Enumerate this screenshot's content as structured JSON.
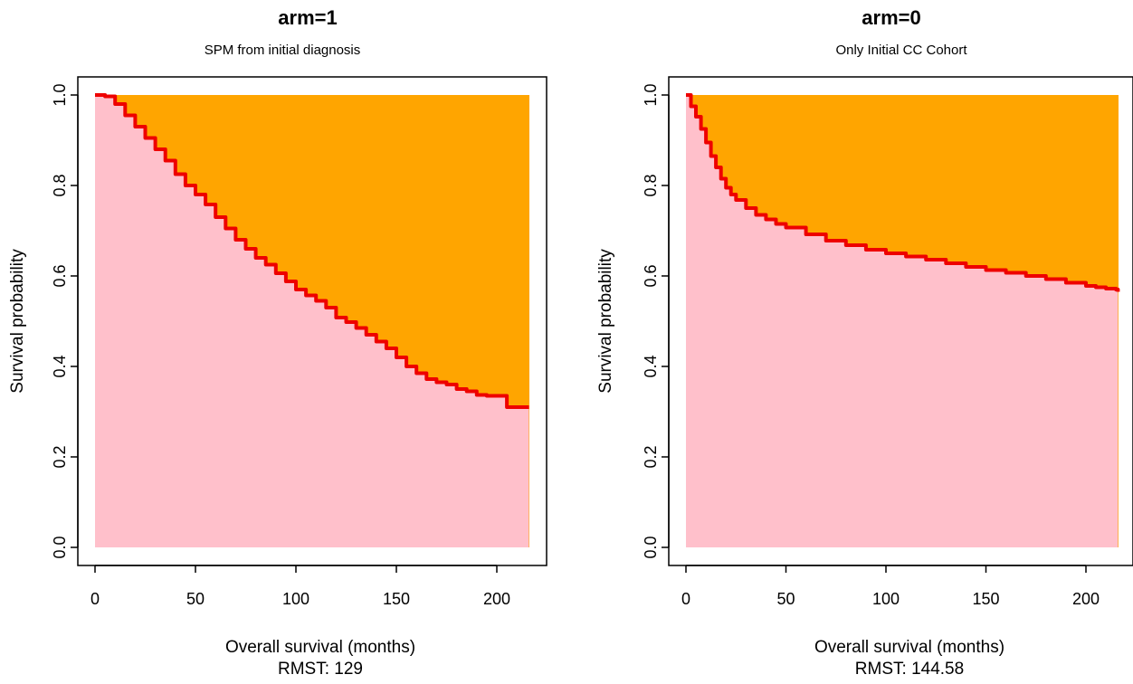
{
  "chart_data": [
    {
      "type": "area",
      "title": "arm=1",
      "subtitle": "SPM from initial diagnosis",
      "xlabel": "Overall survival (months)",
      "ylabel": "Survival probability",
      "rmst_text": "RMST: 129",
      "xlim": [
        0,
        216
      ],
      "ylim": [
        0,
        1
      ],
      "x_ticks": [
        "0",
        "50",
        "100",
        "150",
        "200"
      ],
      "x_tick_values": [
        0,
        50,
        100,
        150,
        200
      ],
      "y_ticks": [
        "0.0",
        "0.2",
        "0.4",
        "0.6",
        "0.8",
        "1.0"
      ],
      "y_tick_values": [
        0,
        0.2,
        0.4,
        0.6,
        0.8,
        1.0
      ],
      "grid": false,
      "colors": {
        "curve": "#ee0000",
        "below_curve": "#ffc0cb",
        "above_curve": "#ffa500"
      },
      "series": [
        {
          "x": [
            0,
            5,
            10,
            15,
            20,
            25,
            30,
            35,
            40,
            45,
            50,
            55,
            60,
            65,
            70,
            75,
            80,
            85,
            90,
            95,
            100,
            105,
            110,
            115,
            120,
            125,
            130,
            135,
            140,
            145,
            150,
            155,
            160,
            165,
            170,
            175,
            180,
            185,
            190,
            195,
            200,
            205,
            210,
            216
          ],
          "y": [
            1.0,
            0.997,
            0.98,
            0.955,
            0.93,
            0.905,
            0.88,
            0.855,
            0.825,
            0.8,
            0.78,
            0.758,
            0.73,
            0.705,
            0.68,
            0.66,
            0.64,
            0.625,
            0.606,
            0.588,
            0.57,
            0.557,
            0.545,
            0.53,
            0.508,
            0.498,
            0.485,
            0.47,
            0.455,
            0.44,
            0.42,
            0.4,
            0.385,
            0.372,
            0.365,
            0.36,
            0.35,
            0.345,
            0.337,
            0.335,
            0.335,
            0.31,
            0.31,
            0.31
          ]
        }
      ]
    },
    {
      "type": "area",
      "title": "arm=0",
      "subtitle": "Only Initial CC Cohort",
      "xlabel": "Overall survival (months)",
      "ylabel": "Survival probability",
      "rmst_text": "RMST: 144.58",
      "xlim": [
        0,
        216
      ],
      "ylim": [
        0,
        1
      ],
      "x_ticks": [
        "0",
        "50",
        "100",
        "150",
        "200"
      ],
      "x_tick_values": [
        0,
        50,
        100,
        150,
        200
      ],
      "y_ticks": [
        "0.0",
        "0.2",
        "0.4",
        "0.6",
        "0.8",
        "1.0"
      ],
      "y_tick_values": [
        0,
        0.2,
        0.4,
        0.6,
        0.8,
        1.0
      ],
      "grid": false,
      "colors": {
        "curve": "#ee0000",
        "below_curve": "#ffc0cb",
        "above_curve": "#ffa500"
      },
      "series": [
        {
          "x": [
            0,
            2.5,
            5,
            7.5,
            10,
            12.5,
            15,
            17.5,
            20,
            22.5,
            25,
            30,
            35,
            40,
            45,
            50,
            60,
            70,
            80,
            90,
            100,
            110,
            120,
            130,
            140,
            150,
            160,
            170,
            180,
            190,
            200,
            205,
            210,
            215,
            216
          ],
          "y": [
            1.0,
            0.975,
            0.952,
            0.925,
            0.895,
            0.865,
            0.84,
            0.815,
            0.795,
            0.78,
            0.768,
            0.75,
            0.735,
            0.725,
            0.715,
            0.707,
            0.692,
            0.678,
            0.668,
            0.658,
            0.65,
            0.643,
            0.636,
            0.628,
            0.62,
            0.613,
            0.607,
            0.6,
            0.593,
            0.585,
            0.578,
            0.575,
            0.572,
            0.57,
            0.565
          ]
        }
      ]
    }
  ]
}
